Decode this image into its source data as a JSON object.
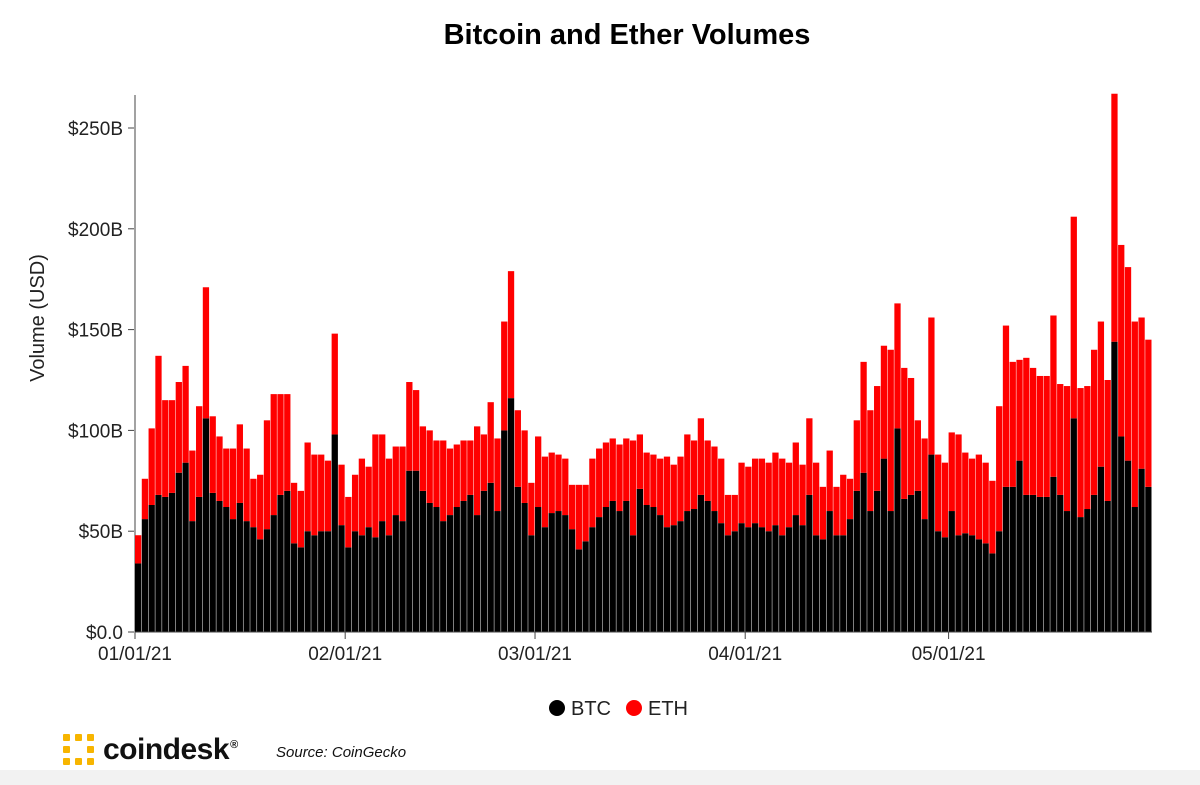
{
  "brand": {
    "name": "coindesk",
    "registered": "®"
  },
  "source": "Source: CoinGecko",
  "colors": {
    "btc": "#000000",
    "eth": "#ff0000",
    "logo": "#f7b500"
  },
  "chart_data": {
    "type": "bar",
    "stacked": true,
    "title": "Bitcoin and Ether Volumes",
    "xlabel": "",
    "ylabel": "Volume (USD)",
    "ylim": [
      0,
      270
    ],
    "yticks": [
      {
        "value": 0,
        "label": "$0.0"
      },
      {
        "value": 50,
        "label": "$50B"
      },
      {
        "value": 100,
        "label": "$100B"
      },
      {
        "value": 150,
        "label": "$150B"
      },
      {
        "value": 200,
        "label": "$200B"
      },
      {
        "value": 250,
        "label": "$250B"
      }
    ],
    "xticks": [
      {
        "date": "2021-01-01",
        "label": "01/01/21"
      },
      {
        "date": "2021-02-01",
        "label": "02/01/21"
      },
      {
        "date": "2021-03-01",
        "label": "03/01/21"
      },
      {
        "date": "2021-04-01",
        "label": "04/01/21"
      },
      {
        "date": "2021-05-01",
        "label": "05/01/21"
      }
    ],
    "x_start": "2021-01-01",
    "x_end": "2021-05-24",
    "legend": "bottom-center",
    "series": [
      {
        "name": "BTC",
        "color": "#000000",
        "values": [
          34,
          56,
          63,
          68,
          67,
          69,
          79,
          84,
          55,
          67,
          106,
          69,
          65,
          62,
          56,
          64,
          55,
          52,
          46,
          51,
          58,
          68,
          70,
          44,
          42,
          50,
          48,
          50,
          50,
          98,
          53,
          42,
          50,
          48,
          52,
          47,
          55,
          48,
          58,
          55,
          80,
          80,
          70,
          64,
          62,
          55,
          58,
          62,
          65,
          68,
          58,
          70,
          74,
          60,
          100,
          116,
          72,
          64,
          48,
          62,
          52,
          59,
          60,
          58,
          51,
          41,
          45,
          52,
          57,
          62,
          65,
          60,
          65,
          48,
          71,
          63,
          62,
          58,
          52,
          53,
          55,
          60,
          61,
          68,
          65,
          60,
          54,
          48,
          50,
          54,
          52,
          54,
          52,
          50,
          53,
          48,
          52,
          58,
          53,
          68,
          48,
          46,
          60,
          48,
          48,
          56,
          70,
          79,
          60,
          70,
          86,
          60,
          101,
          66,
          68,
          70,
          56,
          88,
          50,
          47,
          60,
          48,
          49,
          48,
          46,
          44,
          39,
          50,
          72,
          72,
          85,
          68,
          68,
          67,
          67,
          77,
          68,
          60,
          106,
          57,
          61,
          68,
          82,
          65,
          144,
          97,
          85,
          62,
          81,
          72
        ]
      },
      {
        "name": "ETH",
        "color": "#ff0000",
        "values": [
          14,
          20,
          38,
          69,
          48,
          46,
          45,
          48,
          35,
          45,
          65,
          38,
          32,
          29,
          35,
          39,
          36,
          24,
          32,
          54,
          60,
          50,
          48,
          30,
          28,
          44,
          40,
          38,
          35,
          50,
          30,
          25,
          28,
          38,
          30,
          51,
          43,
          38,
          34,
          37,
          44,
          40,
          32,
          36,
          33,
          40,
          33,
          31,
          30,
          27,
          44,
          28,
          40,
          36,
          54,
          63,
          38,
          36,
          26,
          35,
          35,
          30,
          28,
          28,
          22,
          32,
          28,
          34,
          34,
          32,
          31,
          33,
          31,
          47,
          27,
          26,
          26,
          28,
          35,
          30,
          32,
          38,
          34,
          38,
          30,
          32,
          32,
          20,
          18,
          30,
          30,
          32,
          34,
          34,
          36,
          38,
          32,
          36,
          30,
          38,
          36,
          26,
          30,
          24,
          30,
          20,
          35,
          55,
          50,
          52,
          56,
          80,
          62,
          65,
          58,
          35,
          40,
          68,
          38,
          37,
          39,
          50,
          40,
          38,
          42,
          40,
          36,
          62,
          80,
          62,
          50,
          68,
          63,
          60,
          60,
          80,
          55,
          62,
          100,
          64,
          61,
          72,
          72,
          60,
          123,
          95,
          96,
          92,
          75,
          73
        ]
      }
    ]
  }
}
